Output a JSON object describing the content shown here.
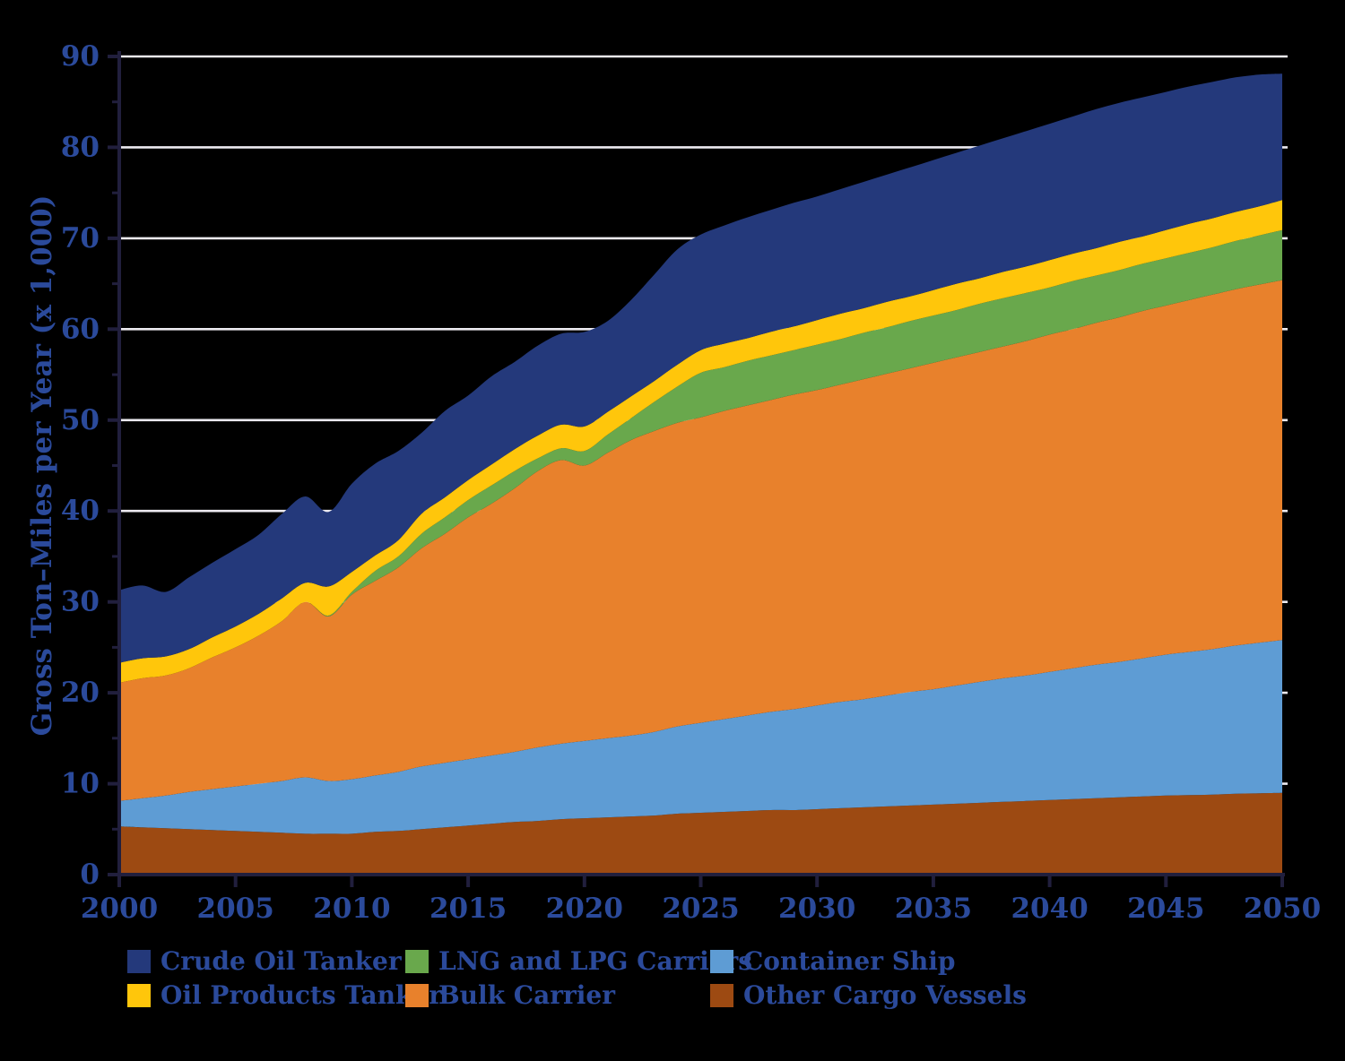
{
  "chart_data": {
    "type": "area",
    "stacked": true,
    "title": "",
    "xlabel": "",
    "ylabel": "Gross Ton–Miles per Year (x 1,000)",
    "xlim": [
      2000,
      2050
    ],
    "ylim": [
      0,
      90
    ],
    "x_ticks": [
      2000,
      2005,
      2010,
      2015,
      2020,
      2025,
      2030,
      2035,
      2040,
      2045,
      2050
    ],
    "y_ticks": [
      0,
      10,
      20,
      30,
      40,
      50,
      60,
      70,
      80,
      90
    ],
    "y_minor_ticks": [
      5,
      15,
      25,
      35,
      45,
      55,
      65,
      75,
      85
    ],
    "grid": "horizontal",
    "legend_position": "bottom",
    "background_color": "#000000",
    "gridline_color": "#eceaf0",
    "axis_color": "#211f3d",
    "label_color": "#2b4a9b",
    "x": [
      2000,
      2001,
      2002,
      2003,
      2004,
      2005,
      2006,
      2007,
      2008,
      2009,
      2010,
      2011,
      2012,
      2013,
      2014,
      2015,
      2016,
      2017,
      2018,
      2019,
      2020,
      2021,
      2022,
      2023,
      2024,
      2025,
      2026,
      2027,
      2028,
      2029,
      2030,
      2031,
      2032,
      2033,
      2034,
      2035,
      2036,
      2037,
      2038,
      2039,
      2040,
      2041,
      2042,
      2043,
      2044,
      2045,
      2046,
      2047,
      2048,
      2049,
      2050
    ],
    "series": [
      {
        "name": "Other Cargo Vessels",
        "color": "#9d4a12",
        "values": [
          5.3,
          5.2,
          5.1,
          5.0,
          4.9,
          4.8,
          4.7,
          4.6,
          4.5,
          4.5,
          4.5,
          4.7,
          4.8,
          5.0,
          5.2,
          5.4,
          5.6,
          5.8,
          5.9,
          6.1,
          6.2,
          6.3,
          6.4,
          6.5,
          6.7,
          6.8,
          6.9,
          7.0,
          7.1,
          7.1,
          7.2,
          7.3,
          7.4,
          7.5,
          7.6,
          7.7,
          7.8,
          7.9,
          8.0,
          8.1,
          8.2,
          8.3,
          8.4,
          8.5,
          8.6,
          8.7,
          8.75,
          8.8,
          8.9,
          8.95,
          9.0
        ]
      },
      {
        "name": "Container Ship",
        "color": "#5e9cd4",
        "values": [
          2.8,
          3.2,
          3.6,
          4.1,
          4.5,
          4.9,
          5.3,
          5.7,
          6.2,
          5.8,
          6.0,
          6.2,
          6.5,
          6.9,
          7.1,
          7.3,
          7.5,
          7.7,
          8.1,
          8.3,
          8.5,
          8.7,
          8.9,
          9.2,
          9.6,
          9.9,
          10.2,
          10.5,
          10.8,
          11.1,
          11.4,
          11.7,
          11.9,
          12.2,
          12.5,
          12.7,
          13.0,
          13.3,
          13.6,
          13.8,
          14.1,
          14.4,
          14.7,
          14.9,
          15.2,
          15.5,
          15.75,
          16.0,
          16.3,
          16.55,
          16.8
        ]
      },
      {
        "name": "Bulk Carrier",
        "color": "#e8812c",
        "values": [
          13.0,
          13.2,
          13.2,
          13.6,
          14.5,
          15.3,
          16.3,
          17.6,
          19.3,
          18.1,
          20.3,
          21.4,
          22.5,
          24.0,
          25.2,
          26.6,
          27.7,
          29.0,
          30.4,
          31.2,
          30.3,
          31.4,
          32.5,
          33.1,
          33.4,
          33.6,
          33.9,
          34.1,
          34.3,
          34.6,
          34.7,
          34.9,
          35.2,
          35.4,
          35.6,
          35.9,
          36.1,
          36.3,
          36.5,
          36.8,
          37.1,
          37.3,
          37.6,
          37.9,
          38.2,
          38.4,
          38.7,
          39.0,
          39.2,
          39.4,
          39.6
        ]
      },
      {
        "name": "LNG and LPG Carriers",
        "color": "#69a84c",
        "values": [
          0,
          0,
          0,
          0,
          0,
          0,
          0,
          0,
          0,
          0.1,
          0.3,
          1.1,
          1.2,
          1.6,
          1.8,
          1.9,
          2.0,
          1.9,
          1.4,
          1.3,
          1.6,
          2.0,
          2.4,
          3.2,
          4.0,
          4.9,
          4.8,
          4.9,
          4.9,
          4.9,
          5.0,
          5.0,
          5.1,
          5.1,
          5.2,
          5.2,
          5.2,
          5.3,
          5.3,
          5.3,
          5.2,
          5.3,
          5.2,
          5.2,
          5.2,
          5.2,
          5.2,
          5.2,
          5.3,
          5.4,
          5.5
        ]
      },
      {
        "name": "Oil Products Tanker",
        "color": "#ffc60b",
        "values": [
          2.2,
          2.2,
          2.1,
          2.1,
          2.2,
          2.3,
          2.4,
          2.5,
          2.1,
          3.2,
          2.2,
          1.7,
          1.8,
          2.2,
          2.2,
          2.2,
          2.3,
          2.4,
          2.5,
          2.6,
          2.7,
          2.5,
          2.4,
          2.3,
          2.4,
          2.5,
          2.6,
          2.5,
          2.6,
          2.6,
          2.7,
          2.8,
          2.7,
          2.8,
          2.7,
          2.8,
          2.9,
          2.8,
          2.9,
          2.9,
          3.0,
          3.0,
          3.0,
          3.1,
          3.0,
          3.1,
          3.2,
          3.2,
          3.2,
          3.2,
          3.3
        ]
      },
      {
        "name": "Crude Oil Tanker",
        "color": "#24397b",
        "values": [
          8.0,
          8.0,
          7.1,
          7.9,
          8.2,
          8.5,
          8.7,
          9.3,
          9.5,
          8.2,
          9.7,
          10.1,
          9.8,
          8.9,
          9.5,
          9.3,
          9.7,
          9.6,
          9.9,
          10.0,
          10.4,
          10.0,
          10.6,
          11.7,
          12.7,
          12.7,
          13.0,
          13.3,
          13.4,
          13.6,
          13.6,
          13.7,
          13.9,
          14.0,
          14.2,
          14.3,
          14.4,
          14.6,
          14.7,
          14.9,
          15.0,
          15.1,
          15.3,
          15.3,
          15.3,
          15.2,
          15.1,
          15.0,
          14.8,
          14.5,
          13.9
        ]
      }
    ]
  },
  "legend": {
    "items": [
      {
        "label": "Crude Oil Tanker",
        "color": "#24397b"
      },
      {
        "label": "LNG and LPG Carriers",
        "color": "#69a84c"
      },
      {
        "label": "Container Ship",
        "color": "#5e9cd4"
      },
      {
        "label": "Oil Products Tanker",
        "color": "#ffc60b"
      },
      {
        "label": "Bulk Carrier",
        "color": "#e8812c"
      },
      {
        "label": "Other Cargo Vessels",
        "color": "#9d4a12"
      }
    ]
  }
}
